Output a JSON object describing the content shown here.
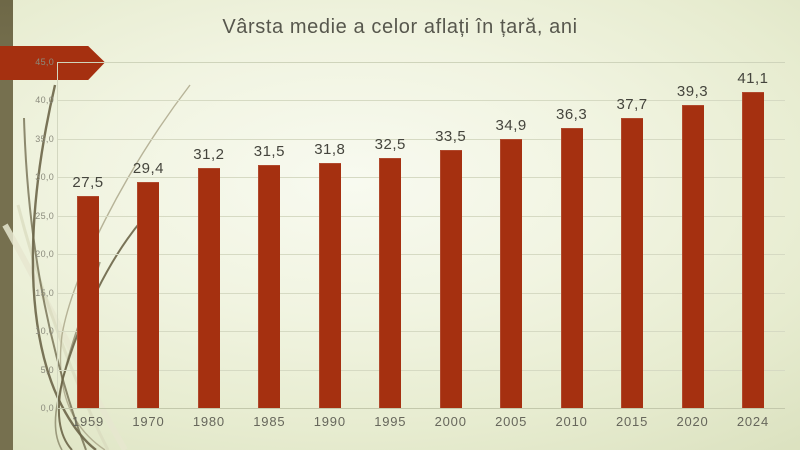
{
  "chart_data": {
    "type": "bar",
    "title": "Vârsta medie a celor aflați în țară, ani",
    "categories": [
      "1959",
      "1970",
      "1980",
      "1985",
      "1990",
      "1995",
      "2000",
      "2005",
      "2010",
      "2015",
      "2020",
      "2024"
    ],
    "values": [
      27.5,
      29.4,
      31.2,
      31.5,
      31.8,
      32.5,
      33.5,
      34.9,
      36.3,
      37.7,
      39.3,
      41.1
    ],
    "data_labels": [
      "27,5",
      "29,4",
      "31,2",
      "31,5",
      "31,8",
      "32,5",
      "33,5",
      "34,9",
      "36,3",
      "37,7",
      "39,3",
      "41,1"
    ],
    "xlabel": "",
    "ylabel": "",
    "ylim": [
      0,
      45
    ],
    "ytick_step": 5,
    "ytick_labels": [
      "0,0",
      "5,0",
      "10,0",
      "15,0",
      "20,0",
      "25,0",
      "30,0",
      "35,0",
      "40,0",
      "45,0"
    ],
    "decimal_separator": ",",
    "grid": true,
    "legend": "none"
  },
  "colors": {
    "bar_fill": "#a53010",
    "arrow_banner": "#a53010",
    "olive_strip": "#76704f",
    "background_center": "#f8faf0",
    "background_edge": "#d8dfba",
    "grid_line": "#d6dac3",
    "title_text": "#57574d",
    "y_axis_text": "#8b8b7d",
    "x_axis_text": "#67675c",
    "value_label_text": "#45453d"
  }
}
